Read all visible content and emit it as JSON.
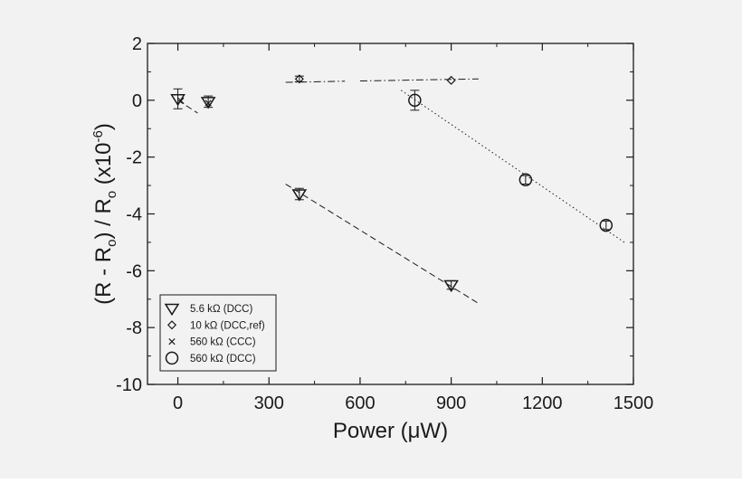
{
  "colors": {
    "background": "#f2f2f2",
    "ink": "#1a1a1a"
  },
  "chart_data": {
    "type": "scatter",
    "xlabel": "Power (μW)",
    "ylabel": "(R - Ro) / Ro (x10-6)",
    "ylabel_parts": [
      "(R - R",
      "o",
      ") / R",
      "o",
      " (x10",
      "-6",
      ")"
    ],
    "xlim": [
      -100,
      1500
    ],
    "ylim": [
      -10,
      2
    ],
    "x_ticks": [
      0,
      300,
      600,
      900,
      1200,
      1500
    ],
    "x_tick_labels": [
      "0",
      "300",
      "600",
      "900",
      "1200",
      "1500"
    ],
    "y_ticks": [
      2,
      0,
      -2,
      -4,
      -6,
      -8,
      -10
    ],
    "y_tick_labels": [
      "2",
      "0",
      "-2",
      "-4",
      "-6",
      "-8",
      "-10"
    ],
    "grid": false,
    "legend_position": "bottom-left",
    "series": [
      {
        "name": "5.6 kΩ (DCC)",
        "marker": "triangle-down",
        "points": [
          {
            "x": 0,
            "y": 0.05,
            "err": 0.35
          },
          {
            "x": 100,
            "y": -0.05,
            "err": 0.2
          },
          {
            "x": 400,
            "y": -3.3,
            "err": 0.2
          },
          {
            "x": 900,
            "y": -6.5,
            "err": 0.15
          }
        ],
        "fits": [
          {
            "style": "dashed",
            "x": [
              0,
              65
            ],
            "y": [
              0.0,
              -0.45
            ]
          },
          {
            "style": "dashed",
            "x": [
              355,
              990
            ],
            "y": [
              -2.95,
              -7.15
            ]
          }
        ]
      },
      {
        "name": "10 kΩ (DCC,ref)",
        "marker": "diamond",
        "points": [
          {
            "x": 400,
            "y": 0.75,
            "err": 0.1
          },
          {
            "x": 900,
            "y": 0.7,
            "err": 0.0
          }
        ],
        "fits": [
          {
            "style": "dashdot",
            "x": [
              355,
              550
            ],
            "y": [
              0.63,
              0.67
            ]
          },
          {
            "style": "dashdot",
            "x": [
              600,
              990
            ],
            "y": [
              0.68,
              0.75
            ]
          }
        ]
      },
      {
        "name": "560 kΩ (CCC)",
        "marker": "x",
        "points": [
          {
            "x": 10,
            "y": -0.02,
            "err": 0.0
          },
          {
            "x": 100,
            "y": -0.1,
            "err": 0.0
          }
        ],
        "fits": []
      },
      {
        "name": "560 kΩ (DCC)",
        "marker": "circle",
        "points": [
          {
            "x": 780,
            "y": 0.0,
            "err": 0.35
          },
          {
            "x": 1145,
            "y": -2.8,
            "err": 0.15
          },
          {
            "x": 1410,
            "y": -4.4,
            "err": 0.15
          }
        ],
        "fits": [
          {
            "style": "dotted",
            "x": [
              735,
              1470
            ],
            "y": [
              0.35,
              -5.0
            ]
          }
        ]
      }
    ],
    "legend_parts": [
      [
        "5.6 k",
        "Ω",
        " (DCC)"
      ],
      [
        "10 k",
        "Ω",
        " (DCC,ref)"
      ],
      [
        "560 k",
        "Ω",
        " (CCC)"
      ],
      [
        "560 k",
        "Ω",
        " (DCC)"
      ]
    ]
  }
}
